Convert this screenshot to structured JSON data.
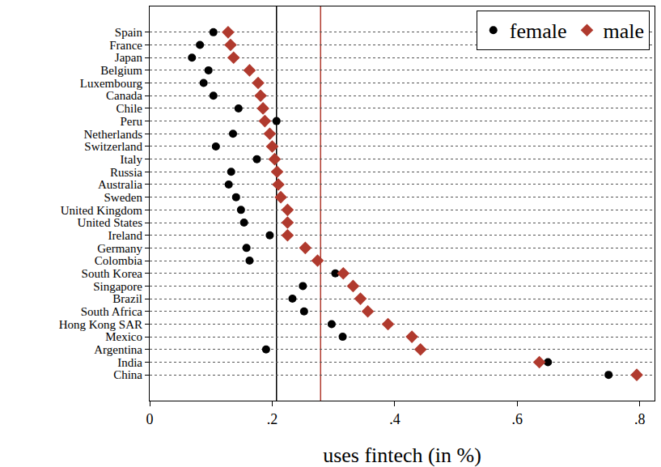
{
  "chart_data": {
    "type": "scatter",
    "orientation": "horizontal",
    "x_label": "uses fintech (in %)",
    "categories": [
      "Spain",
      "France",
      "Japan",
      "Belgium",
      "Luxembourg",
      "Canada",
      "Chile",
      "Peru",
      "Netherlands",
      "Switzerland",
      "Italy",
      "Russia",
      "Australia",
      "Sweden",
      "United Kingdom",
      "United States",
      "Ireland",
      "Germany",
      "Colombia",
      "South Korea",
      "Singapore",
      "Brazil",
      "South Africa",
      "Hong Kong SAR",
      "Mexico",
      "Argentina",
      "India",
      "China"
    ],
    "series": [
      {
        "name": "female",
        "color": "#000000",
        "marker": "circle",
        "values": [
          0.104,
          0.082,
          0.069,
          0.096,
          0.088,
          0.104,
          0.145,
          0.207,
          0.136,
          0.108,
          0.175,
          0.133,
          0.129,
          0.141,
          0.149,
          0.154,
          0.196,
          0.158,
          0.163,
          0.303,
          0.25,
          0.233,
          0.252,
          0.297,
          0.315,
          0.19,
          0.65,
          0.749
        ]
      },
      {
        "name": "male",
        "color": "#b03a2e",
        "marker": "diamond",
        "values": [
          0.128,
          0.132,
          0.137,
          0.163,
          0.177,
          0.181,
          0.185,
          0.188,
          0.196,
          0.2,
          0.204,
          0.208,
          0.21,
          0.214,
          0.225,
          0.225,
          0.225,
          0.254,
          0.274,
          0.316,
          0.332,
          0.344,
          0.356,
          0.389,
          0.428,
          0.442,
          0.636,
          0.795
        ]
      }
    ],
    "reference_lines": [
      {
        "value": 0.207,
        "color": "#000000"
      },
      {
        "value": 0.279,
        "color": "#b03a2e"
      }
    ],
    "xlim": [
      0,
      0.824
    ],
    "xticks": [
      {
        "value": 0,
        "label": "0"
      },
      {
        "value": 0.2,
        "label": ".2"
      },
      {
        "value": 0.4,
        "label": ".4"
      },
      {
        "value": 0.6,
        "label": ".6"
      },
      {
        "value": 0.8,
        "label": ".8"
      }
    ],
    "grid": true,
    "legend": "top right"
  }
}
